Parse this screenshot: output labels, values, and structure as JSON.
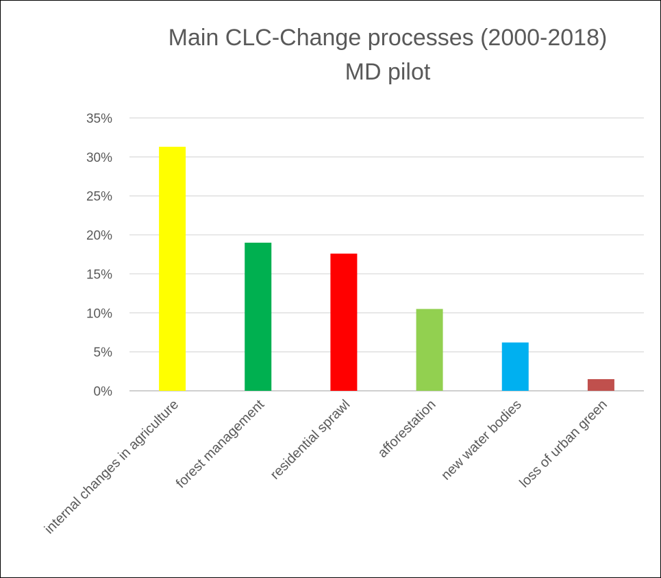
{
  "chart_data": {
    "type": "bar",
    "title": "Main CLC-Change processes (2000-2018)",
    "subtitle": "MD pilot",
    "xlabel": "",
    "ylabel": "",
    "ylim": [
      0,
      35
    ],
    "y_ticks": [
      "0%",
      "5%",
      "10%",
      "15%",
      "20%",
      "25%",
      "30%",
      "35%"
    ],
    "grid": true,
    "legend": "none",
    "categories": [
      "internal changes in agriculture",
      "forest management",
      "residential sprawl",
      "afforestation",
      "new water bodies",
      "loss of urban green"
    ],
    "values": [
      31.3,
      19.0,
      17.6,
      10.5,
      6.2,
      1.5
    ],
    "colors": [
      "#FFFF00",
      "#00B050",
      "#FF0000",
      "#92D050",
      "#00B0F0",
      "#C0504D"
    ]
  }
}
